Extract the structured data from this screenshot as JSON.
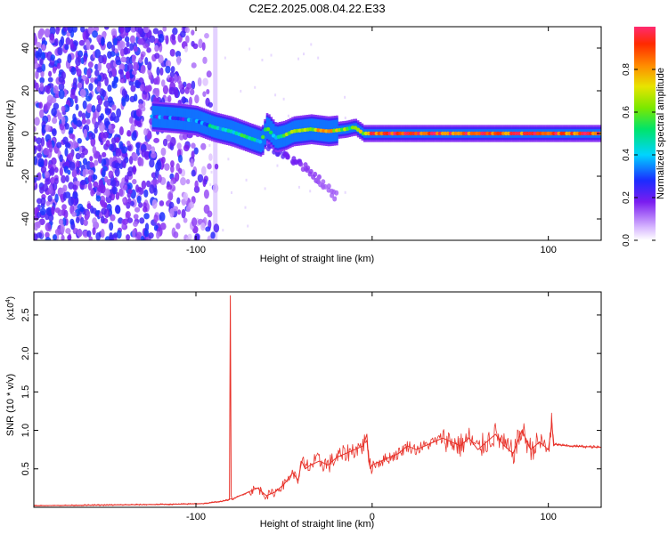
{
  "figure_title": "C2E2.2025.008.04.22.E33",
  "chart_data": [
    {
      "type": "heatmap",
      "title": "",
      "xlabel": "Height of straight line (km)",
      "ylabel": "Frequency (Hz)",
      "xlim": [
        -192,
        130
      ],
      "ylim": [
        -50,
        50
      ],
      "xticks": [
        -100,
        0,
        100
      ],
      "xtick_labels": [
        "-100",
        "",
        "100"
      ],
      "yticks": [
        -40,
        -20,
        0,
        20,
        40
      ],
      "ytick_labels": [
        "-40",
        "-20",
        "0",
        "20",
        "40"
      ],
      "grid": false,
      "colorbar": {
        "label": "Normalized spectral amplitude",
        "range": [
          0.0,
          1.0
        ],
        "ticks": [
          0.0,
          0.2,
          0.4,
          0.6,
          0.8
        ],
        "tick_labels": [
          "0.0",
          "0.2",
          "0.4",
          "0.6",
          "0.8"
        ],
        "colormap": "rainbow (white-violet-blue-cyan-green-yellow-red)"
      },
      "noise_region": {
        "x_range": [
          -192,
          -88
        ],
        "y_range": [
          -50,
          50
        ],
        "amplitude": [
          0.1,
          0.3
        ]
      },
      "signal_track": [
        {
          "x": -125,
          "y": 8,
          "amplitude": 0.3
        },
        {
          "x": -110,
          "y": 7,
          "amplitude": 0.3
        },
        {
          "x": -100,
          "y": 6,
          "amplitude": 0.3
        },
        {
          "x": -90,
          "y": 3,
          "amplitude": 0.45
        },
        {
          "x": -80,
          "y": 1,
          "amplitude": 0.5
        },
        {
          "x": -70,
          "y": -2,
          "amplitude": 0.5
        },
        {
          "x": -63,
          "y": -4,
          "amplitude": 0.45
        },
        {
          "x": -60,
          "y": 3,
          "amplitude": 0.5
        },
        {
          "x": -55,
          "y": -2,
          "amplitude": 0.45
        },
        {
          "x": -50,
          "y": -1,
          "amplitude": 0.55
        },
        {
          "x": -45,
          "y": 1,
          "amplitude": 0.6
        },
        {
          "x": -35,
          "y": 2,
          "amplitude": 0.65
        },
        {
          "x": -25,
          "y": 1,
          "amplitude": 0.8
        },
        {
          "x": -15,
          "y": 2,
          "amplitude": 0.6
        },
        {
          "x": -10,
          "y": 3,
          "amplitude": 0.6
        },
        {
          "x": -5,
          "y": 0,
          "amplitude": 0.7
        },
        {
          "x": 0,
          "y": 0,
          "amplitude": 0.9
        },
        {
          "x": 130,
          "y": 0,
          "amplitude": 0.9
        }
      ],
      "descending_branch": [
        {
          "x": -62,
          "y": -5
        },
        {
          "x": -50,
          "y": -10
        },
        {
          "x": -40,
          "y": -15
        },
        {
          "x": -30,
          "y": -22
        },
        {
          "x": -20,
          "y": -30
        }
      ],
      "vertical_band_x": -89
    },
    {
      "type": "line",
      "title": "",
      "xlabel": "Height of straight line (km)",
      "ylabel": "SNR (10 * v/v)",
      "y_multiplier_label": "(x10",
      "y_multiplier_exponent": "4",
      "y_multiplier_close": ")",
      "xlim": [
        -192,
        130
      ],
      "ylim": [
        0,
        2.8
      ],
      "xticks": [
        -100,
        0,
        100
      ],
      "xtick_labels": [
        "-100",
        "0",
        "100"
      ],
      "yticks": [
        0.5,
        1.0,
        1.5,
        2.0,
        2.5
      ],
      "ytick_labels": [
        "0.5",
        "1.0",
        "1.5",
        "2.0",
        "2.5"
      ],
      "grid": false,
      "color": "#e8322a",
      "series": [
        {
          "x": [
            -192,
            -150,
            -110,
            -95,
            -85,
            -81,
            -80.5,
            -80,
            -79.5,
            -78,
            -70,
            -65,
            -60,
            -55,
            -50,
            -45,
            -42,
            -40,
            -38,
            -35,
            -30,
            -25,
            -20,
            -15,
            -10,
            -5,
            -3,
            -2,
            -1,
            0,
            5,
            10,
            15,
            20,
            25,
            30,
            35,
            40,
            45,
            50,
            55,
            60,
            65,
            70,
            75,
            80,
            85,
            90,
            95,
            100,
            102,
            103,
            104,
            110,
            120,
            130
          ],
          "y": [
            0.02,
            0.03,
            0.04,
            0.05,
            0.08,
            0.1,
            2.75,
            0.15,
            0.1,
            0.12,
            0.2,
            0.25,
            0.15,
            0.2,
            0.3,
            0.45,
            0.35,
            0.6,
            0.5,
            0.55,
            0.6,
            0.55,
            0.65,
            0.7,
            0.75,
            0.8,
            0.95,
            0.6,
            0.5,
            0.55,
            0.6,
            0.65,
            0.7,
            0.8,
            0.75,
            0.8,
            0.85,
            0.9,
            0.85,
            0.8,
            0.9,
            0.75,
            0.85,
            0.95,
            0.8,
            0.7,
            1.0,
            0.75,
            0.85,
            0.75,
            1.1,
            0.8,
            0.82,
            0.8,
            0.79,
            0.78
          ]
        }
      ]
    }
  ]
}
